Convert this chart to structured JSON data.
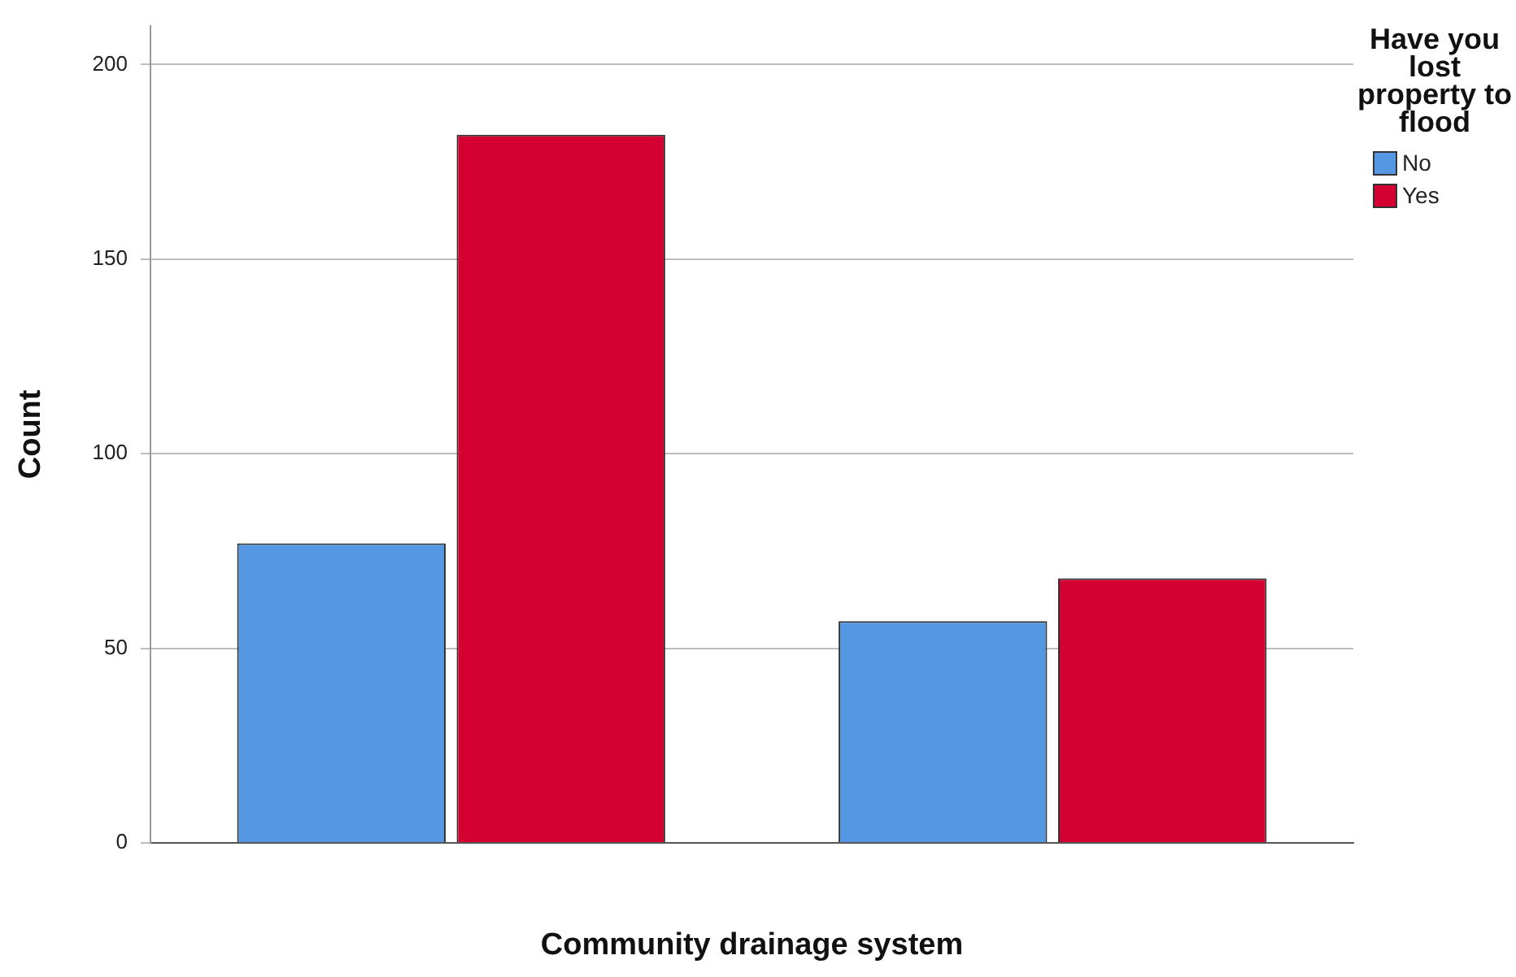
{
  "chart_data": {
    "type": "bar",
    "xlabel": "Community drainage system",
    "ylabel": "Count",
    "legend_title": "Have you lost property to flood",
    "categories": [
      null,
      null
    ],
    "series": [
      {
        "name": "No",
        "color": "#5597e3",
        "values": [
          77,
          57
        ]
      },
      {
        "name": "Yes",
        "color": "#d50032",
        "values": [
          182,
          68
        ]
      }
    ],
    "ylim": [
      0,
      210
    ],
    "yticks": [
      0,
      50,
      100,
      150,
      200
    ],
    "grid": "y",
    "legend": "top right"
  }
}
